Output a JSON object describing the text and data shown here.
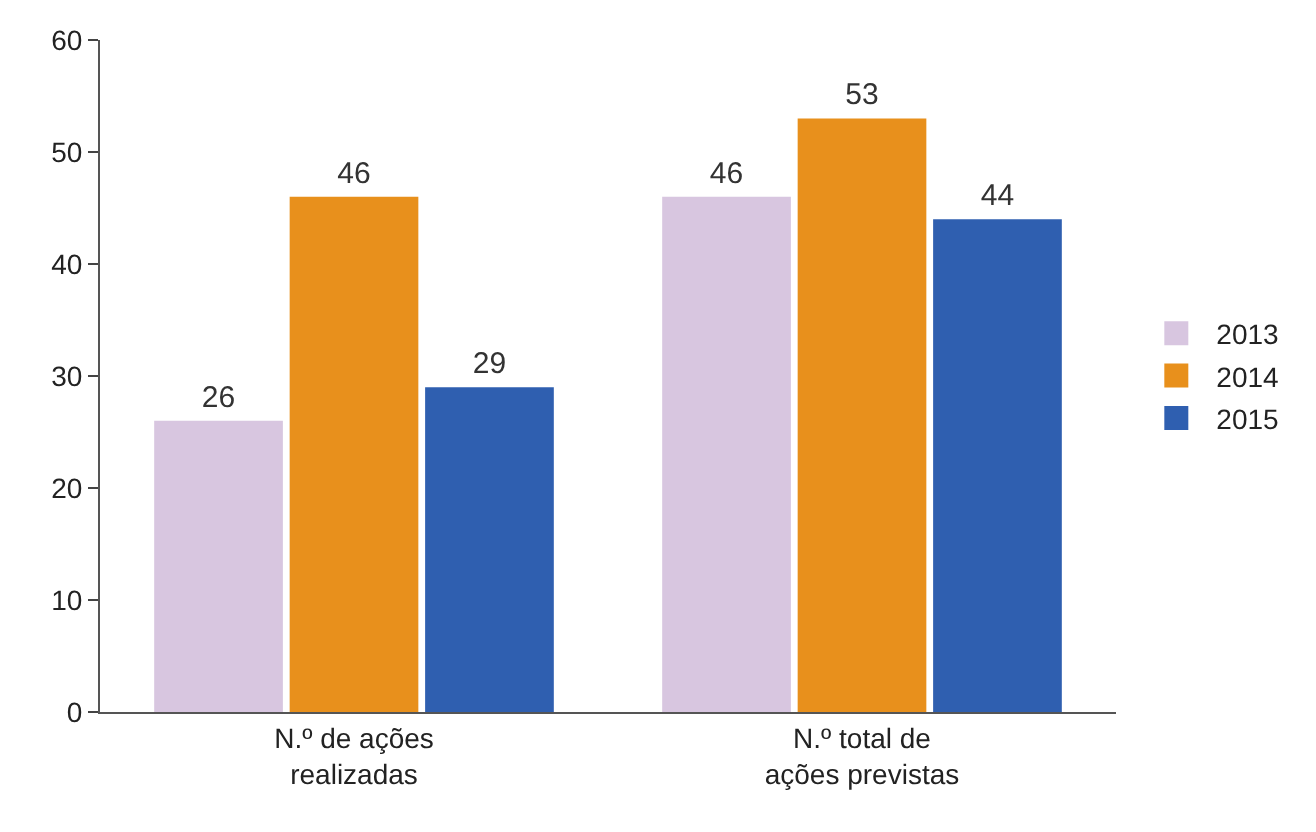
{
  "chart_data": {
    "type": "bar",
    "categories": [
      "N.º de ações realizadas",
      "N.º total de ações previstas"
    ],
    "series": [
      {
        "name": "2013",
        "color": "#d8c6e0",
        "values": [
          26,
          46
        ]
      },
      {
        "name": "2014",
        "color": "#e8901c",
        "values": [
          46,
          53
        ]
      },
      {
        "name": "2015",
        "color": "#2f5fb0",
        "values": [
          29,
          44
        ]
      }
    ],
    "ylim": [
      0,
      60
    ],
    "yticks": [
      0,
      10,
      20,
      30,
      40,
      50,
      60
    ],
    "data_labels": true,
    "legend": "right"
  }
}
